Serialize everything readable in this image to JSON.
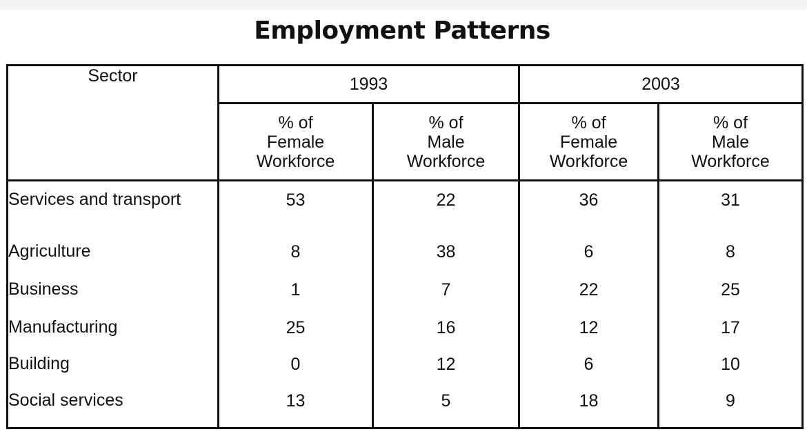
{
  "chart_data": {
    "type": "table",
    "title": "Employment Patterns",
    "row_header_label": "Sector",
    "years": [
      "1993",
      "2003"
    ],
    "subheaders": [
      [
        "% of",
        "Female",
        "Workforce"
      ],
      [
        "% of",
        "Male",
        "Workforce"
      ],
      [
        "% of",
        "Female",
        "Workforce"
      ],
      [
        "% of",
        "Male",
        "Workforce"
      ]
    ],
    "rows": [
      {
        "sector": "Services and transport",
        "values": [
          "53",
          "22",
          "36",
          "31"
        ]
      },
      {
        "sector": "Agriculture",
        "values": [
          "8",
          "38",
          "6",
          "8"
        ]
      },
      {
        "sector": "Business",
        "values": [
          "1",
          "7",
          "22",
          "25"
        ]
      },
      {
        "sector": "Manufacturing",
        "values": [
          "25",
          "16",
          "12",
          "17"
        ]
      },
      {
        "sector": "Building",
        "values": [
          "0",
          "12",
          "6",
          "10"
        ]
      },
      {
        "sector": "Social services",
        "values": [
          "13",
          "5",
          "18",
          "9"
        ]
      }
    ]
  }
}
